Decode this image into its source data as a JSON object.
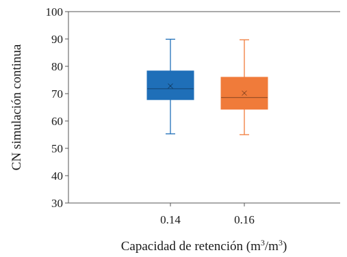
{
  "chart_data": {
    "type": "box",
    "title": "",
    "xlabel": "Capacidad de retención (m",
    "xlabel_sup1": "3",
    "xlabel_mid": "/m",
    "xlabel_sup2": "3",
    "xlabel_end": ")",
    "ylabel": "CN simulación continua",
    "ylim": [
      30,
      100
    ],
    "yticks": [
      30,
      40,
      50,
      60,
      70,
      80,
      90,
      100
    ],
    "categories": [
      "0.14",
      "0.16"
    ],
    "series": [
      {
        "category": "0.14",
        "color": "#1f6fb8",
        "min": 55.3,
        "q1": 67.8,
        "median": 71.8,
        "q3": 78.3,
        "max": 89.9,
        "mean": 72.8
      },
      {
        "category": "0.16",
        "color": "#f07b3a",
        "min": 55.0,
        "q1": 64.3,
        "median": 68.6,
        "q3": 76.0,
        "max": 89.7,
        "mean": 70.2
      }
    ],
    "grid": false,
    "legend": "none"
  }
}
